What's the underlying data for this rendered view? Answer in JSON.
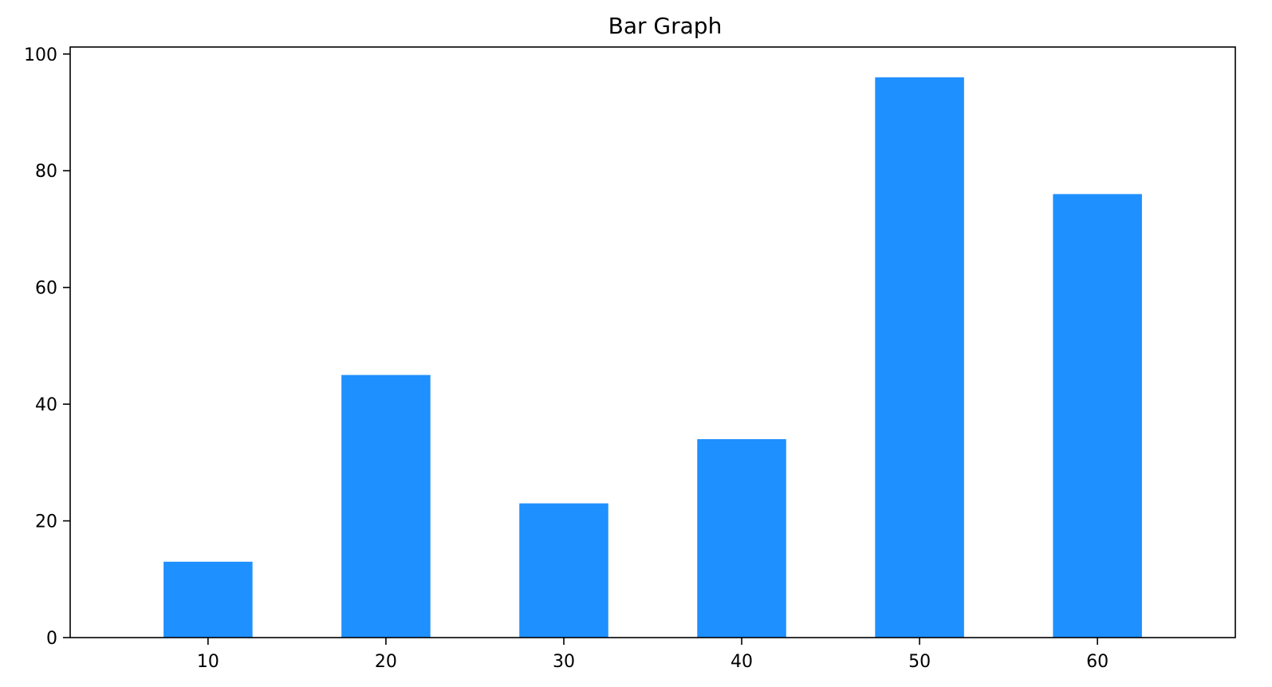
{
  "chart_data": {
    "type": "bar",
    "title": "Bar Graph",
    "xlabel": "",
    "ylabel": "",
    "categories": [
      "10",
      "20",
      "30",
      "40",
      "50",
      "60"
    ],
    "values": [
      13,
      45,
      23,
      34,
      96,
      76
    ],
    "ylim": [
      0,
      100
    ],
    "yticks": [
      "0",
      "20",
      "40",
      "60",
      "80",
      "100"
    ],
    "yticks_values": [
      0,
      20,
      40,
      60,
      80,
      100
    ],
    "grid": false,
    "legend": "none",
    "bar_color": "#1E90FF"
  }
}
